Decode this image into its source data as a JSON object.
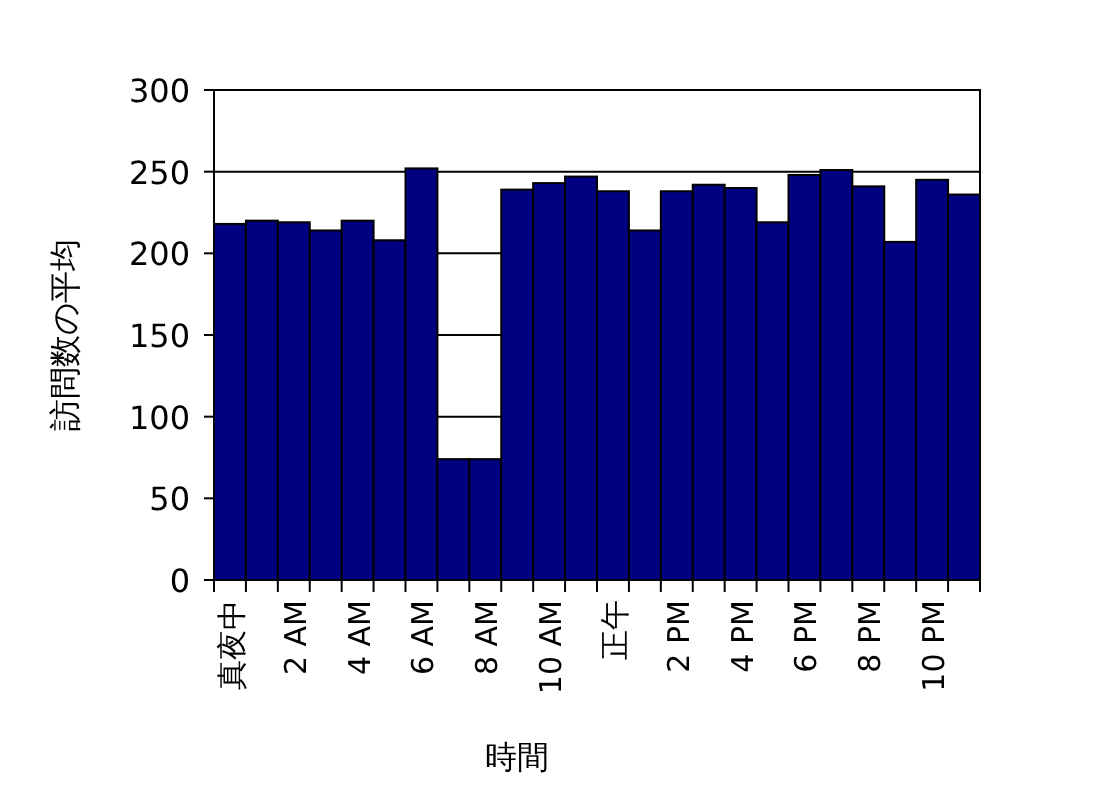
{
  "chart_data": {
    "type": "bar",
    "xlabel": "時間",
    "ylabel": "訪問数の平均",
    "categories": [
      "真夜中",
      null,
      "2 AM",
      null,
      "4 AM",
      null,
      "6 AM",
      null,
      "8 AM",
      null,
      "10 AM",
      null,
      "正午",
      null,
      "2 PM",
      null,
      "4 PM",
      null,
      "6 PM",
      null,
      "8 PM",
      null,
      "10 PM",
      null
    ],
    "values": [
      218,
      220,
      219,
      214,
      220,
      208,
      252,
      74,
      74,
      239,
      243,
      247,
      238,
      214,
      238,
      242,
      240,
      219,
      248,
      251,
      241,
      207,
      245,
      236
    ],
    "color": "#000080",
    "ylim": [
      0,
      300
    ],
    "yticks": [
      0,
      50,
      100,
      150,
      200,
      250,
      300
    ],
    "grid": "y"
  }
}
